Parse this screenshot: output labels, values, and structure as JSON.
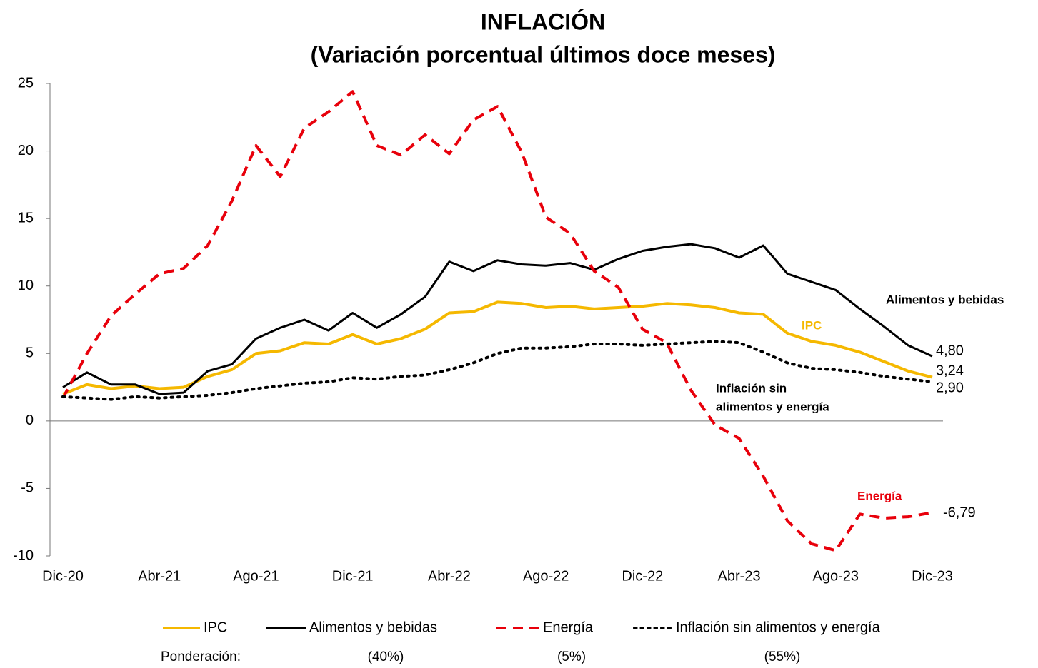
{
  "chart_data": {
    "type": "line",
    "title": [
      "INFLACIÓN",
      "(Variación porcentual últimos doce meses)"
    ],
    "categories": [
      "Dic-20",
      null,
      null,
      null,
      "Abr-21",
      null,
      null,
      null,
      "Ago-21",
      null,
      null,
      null,
      "Dic-21",
      null,
      null,
      null,
      "Abr-22",
      null,
      null,
      null,
      "Ago-22",
      null,
      null,
      null,
      "Dic-22",
      null,
      null,
      null,
      "Abr-23",
      null,
      null,
      null,
      "Ago-23",
      null,
      null,
      null,
      "Dic-23"
    ],
    "ylim": [
      -10,
      25
    ],
    "yticks": [
      -10,
      -5,
      0,
      5,
      10,
      15,
      20,
      25
    ],
    "grid": false,
    "series": [
      {
        "name": "IPC",
        "color": "#f5b800",
        "dash": "solid",
        "values": [
          2.0,
          2.7,
          2.4,
          2.6,
          2.4,
          2.5,
          3.3,
          3.8,
          5.0,
          5.2,
          5.8,
          5.7,
          6.4,
          5.7,
          6.1,
          6.8,
          8.0,
          8.1,
          8.8,
          8.7,
          8.4,
          8.5,
          8.3,
          8.4,
          8.5,
          8.7,
          8.6,
          8.4,
          8.0,
          7.9,
          6.5,
          5.9,
          5.6,
          5.1,
          4.4,
          3.7,
          3.24
        ],
        "value_labels": [
          null,
          null,
          null,
          null,
          null,
          null,
          null,
          null,
          null,
          null,
          null,
          null,
          null,
          null,
          null,
          null,
          null,
          null,
          null,
          null,
          null,
          null,
          null,
          null,
          null,
          null,
          null,
          null,
          null,
          null,
          null,
          null,
          null,
          null,
          null,
          null,
          "3,24"
        ]
      },
      {
        "name": "Alimentos y bebidas",
        "color": "#000000",
        "dash": "solid",
        "values": [
          2.5,
          3.6,
          2.7,
          2.7,
          2.0,
          2.1,
          3.7,
          4.2,
          6.1,
          6.9,
          7.5,
          6.7,
          8.0,
          6.9,
          7.9,
          9.2,
          11.8,
          11.1,
          11.9,
          11.6,
          11.5,
          11.7,
          11.2,
          12.0,
          12.6,
          12.9,
          13.1,
          12.8,
          12.1,
          13.0,
          10.9,
          10.3,
          9.7,
          8.3,
          7.0,
          5.6,
          4.8
        ],
        "value_labels": [
          null,
          null,
          null,
          null,
          null,
          null,
          null,
          null,
          null,
          null,
          null,
          null,
          null,
          null,
          null,
          null,
          null,
          null,
          null,
          null,
          null,
          null,
          null,
          null,
          null,
          null,
          null,
          null,
          null,
          null,
          null,
          null,
          null,
          null,
          null,
          null,
          "4,80"
        ]
      },
      {
        "name": "Energía",
        "color": "#e8000b",
        "dash": "dashed",
        "values": [
          1.7,
          5.0,
          7.8,
          9.4,
          10.9,
          11.3,
          13.0,
          16.3,
          20.4,
          18.1,
          21.7,
          22.9,
          24.4,
          20.4,
          19.7,
          21.2,
          19.8,
          22.3,
          23.3,
          19.9,
          15.1,
          13.9,
          11.1,
          9.9,
          6.8,
          5.8,
          2.3,
          -0.3,
          -1.3,
          -4.1,
          -7.4,
          -9.1,
          -9.6,
          -6.9,
          -7.2,
          -7.1,
          -6.79
        ],
        "value_labels": [
          null,
          null,
          null,
          null,
          null,
          null,
          null,
          null,
          null,
          null,
          null,
          null,
          null,
          null,
          null,
          null,
          null,
          null,
          null,
          null,
          null,
          null,
          null,
          null,
          null,
          null,
          null,
          null,
          null,
          null,
          null,
          null,
          null,
          null,
          null,
          null,
          "-6,79"
        ]
      },
      {
        "name": "Inflación sin alimentos y energía",
        "color": "#000000",
        "dash": "dotted",
        "values": [
          1.8,
          1.7,
          1.6,
          1.8,
          1.7,
          1.8,
          1.9,
          2.1,
          2.4,
          2.6,
          2.8,
          2.9,
          3.2,
          3.1,
          3.3,
          3.4,
          3.8,
          4.3,
          5.0,
          5.4,
          5.4,
          5.5,
          5.7,
          5.7,
          5.6,
          5.7,
          5.8,
          5.9,
          5.8,
          5.1,
          4.3,
          3.9,
          3.8,
          3.6,
          3.3,
          3.1,
          2.9
        ],
        "value_labels": [
          null,
          null,
          null,
          null,
          null,
          null,
          null,
          null,
          null,
          null,
          null,
          null,
          null,
          null,
          null,
          null,
          null,
          null,
          null,
          null,
          null,
          null,
          null,
          null,
          null,
          null,
          null,
          null,
          null,
          null,
          null,
          null,
          null,
          null,
          null,
          null,
          "2,90"
        ]
      }
    ],
    "annotations": [
      {
        "text": [
          "Alimentos y bebidas"
        ],
        "color": "#000000"
      },
      {
        "text": [
          "IPC"
        ],
        "color": "#f5b800"
      },
      {
        "text": [
          "Inflación sin",
          "alimentos y energía"
        ],
        "color": "#000000"
      },
      {
        "text": [
          "Energía"
        ],
        "color": "#e8000b"
      }
    ],
    "weights_label": "Ponderación:",
    "weights": [
      "(40%)",
      "(5%)",
      "(55%)"
    ]
  }
}
